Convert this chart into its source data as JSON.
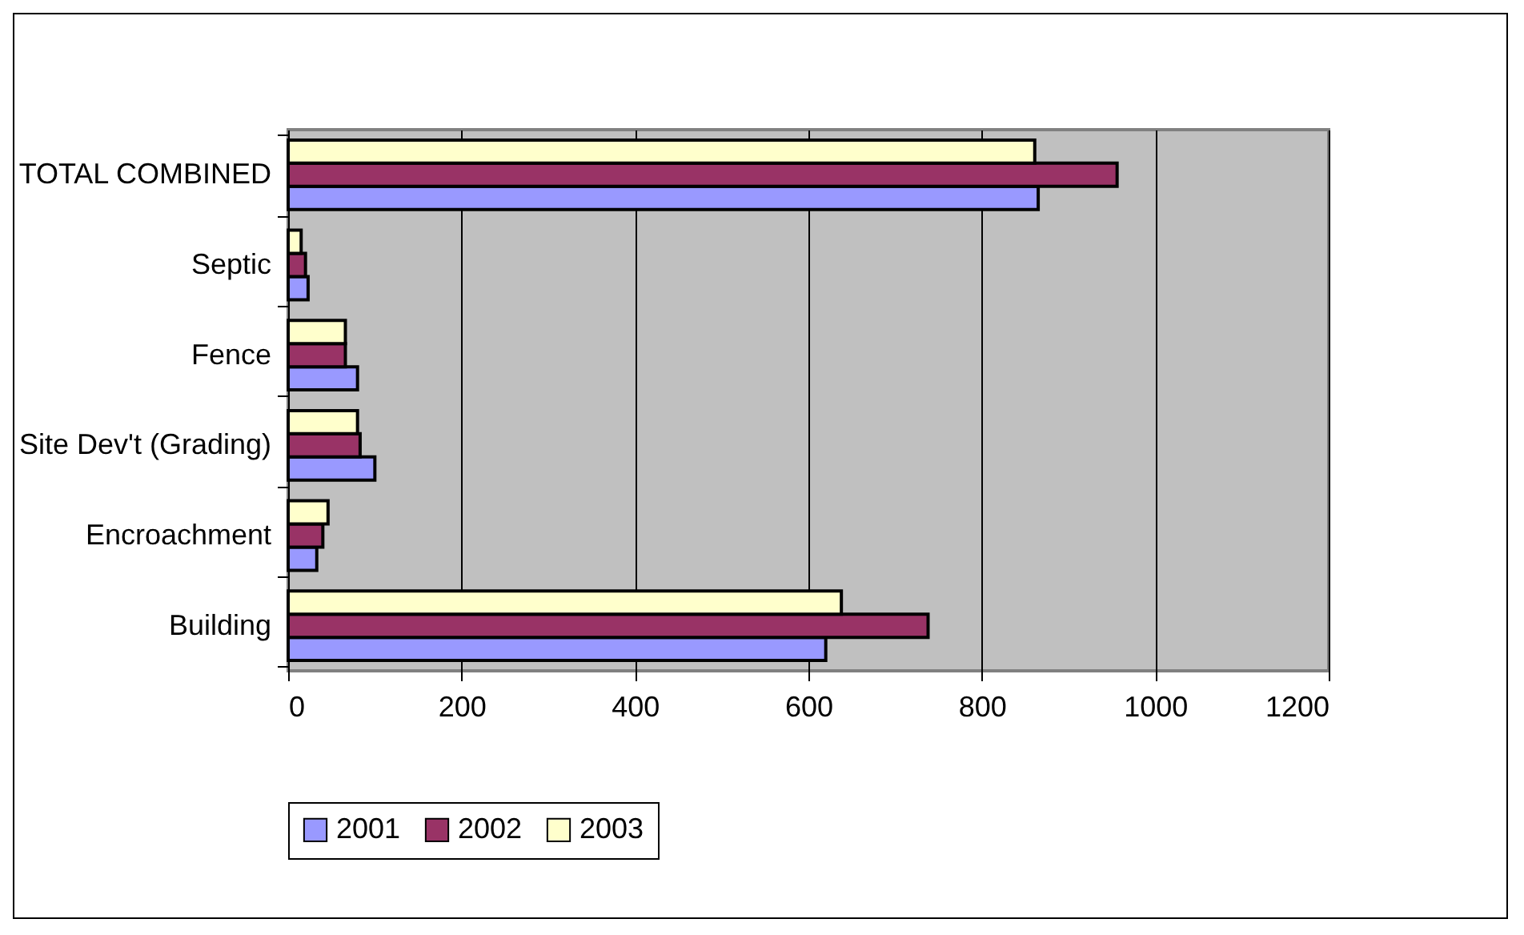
{
  "chart_data": {
    "type": "bar",
    "orientation": "horizontal",
    "categories": [
      "TOTAL COMBINED",
      "Septic",
      "Fence",
      "Site Dev't (Grading)",
      "Encroachment",
      "Building"
    ],
    "series": [
      {
        "name": "2001",
        "color": "#9999ff",
        "values": [
          865,
          23,
          80,
          100,
          33,
          620
        ]
      },
      {
        "name": "2002",
        "color": "#993366",
        "values": [
          956,
          20,
          66,
          83,
          40,
          738
        ]
      },
      {
        "name": "2003",
        "color": "#ffffcc",
        "values": [
          861,
          15,
          66,
          80,
          46,
          638
        ]
      }
    ],
    "xlim": [
      0,
      1200
    ],
    "xticks": [
      0,
      200,
      400,
      600,
      800,
      1000,
      1200
    ],
    "grid": "x",
    "legend": "bottom"
  }
}
